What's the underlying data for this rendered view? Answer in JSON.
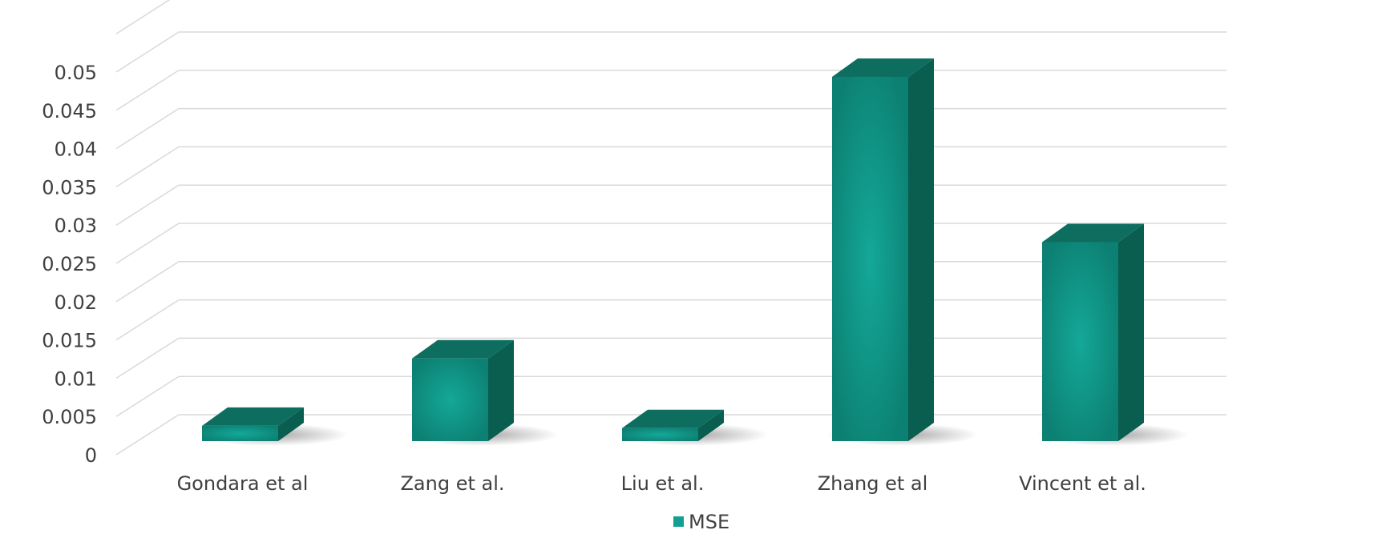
{
  "chart_data": {
    "type": "bar",
    "title": "",
    "xlabel": "",
    "ylabel": "",
    "categories": [
      "Gondara et al",
      "Zang et al.",
      "Liu et al.",
      "Zhang et al",
      "Vincent et al."
    ],
    "series": [
      {
        "name": "MSE",
        "values": [
          0.002,
          0.0108,
          0.0017,
          0.0476,
          0.026
        ]
      }
    ],
    "ylim": [
      0,
      0.055
    ],
    "yticks": [
      {
        "value": 0,
        "label": "0"
      },
      {
        "value": 0.005,
        "label": "0.005"
      },
      {
        "value": 0.01,
        "label": "0.01"
      },
      {
        "value": 0.015,
        "label": "0.015"
      },
      {
        "value": 0.02,
        "label": "0.02"
      },
      {
        "value": 0.025,
        "label": "0.025"
      },
      {
        "value": 0.03,
        "label": "0.03"
      },
      {
        "value": 0.035,
        "label": "0.035"
      },
      {
        "value": 0.04,
        "label": "0.04"
      },
      {
        "value": 0.045,
        "label": "0.045"
      },
      {
        "value": 0.05,
        "label": "0.05"
      }
    ],
    "grid": true,
    "legend": "bottom-center",
    "colors": {
      "front": "#12a090",
      "front_edge": "#0c8173",
      "side": "#0a5e50",
      "top": "#0d6e60",
      "grid": "#d9d9d9",
      "text": "#404040"
    }
  }
}
